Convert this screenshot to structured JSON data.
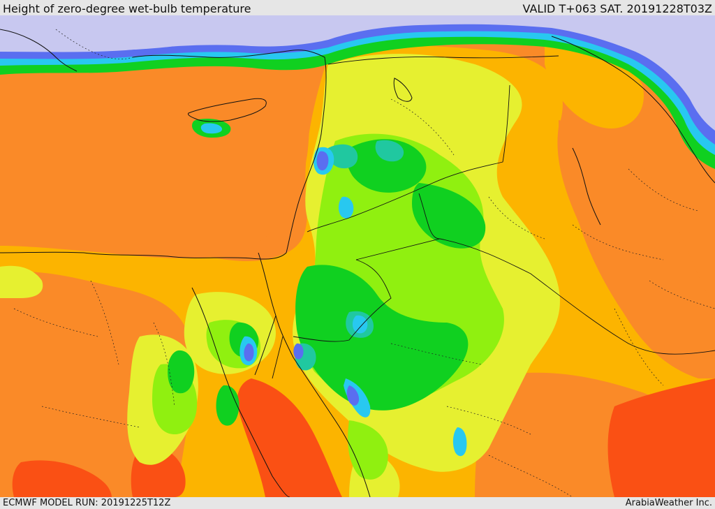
{
  "header": {
    "title": "Height of zero-degree wet-bulb temperature",
    "valid": "VALID T+063 SAT. 20191228T03Z"
  },
  "footer": {
    "model_run": "ECMWF MODEL RUN: 20191225T12Z",
    "credit": "ArabiaWeather Inc."
  },
  "palette": {
    "lavender": "#c8c8f0",
    "blue": "#5a6ef0",
    "cyan": "#28c8f0",
    "teal": "#20c8a0",
    "green": "#10d020",
    "light_green": "#90f010",
    "yellow_green": "#e6f030",
    "orange_yellow": "#fcb400",
    "orange": "#fa8a28",
    "red_orange": "#fa5014",
    "border": "#111111"
  }
}
